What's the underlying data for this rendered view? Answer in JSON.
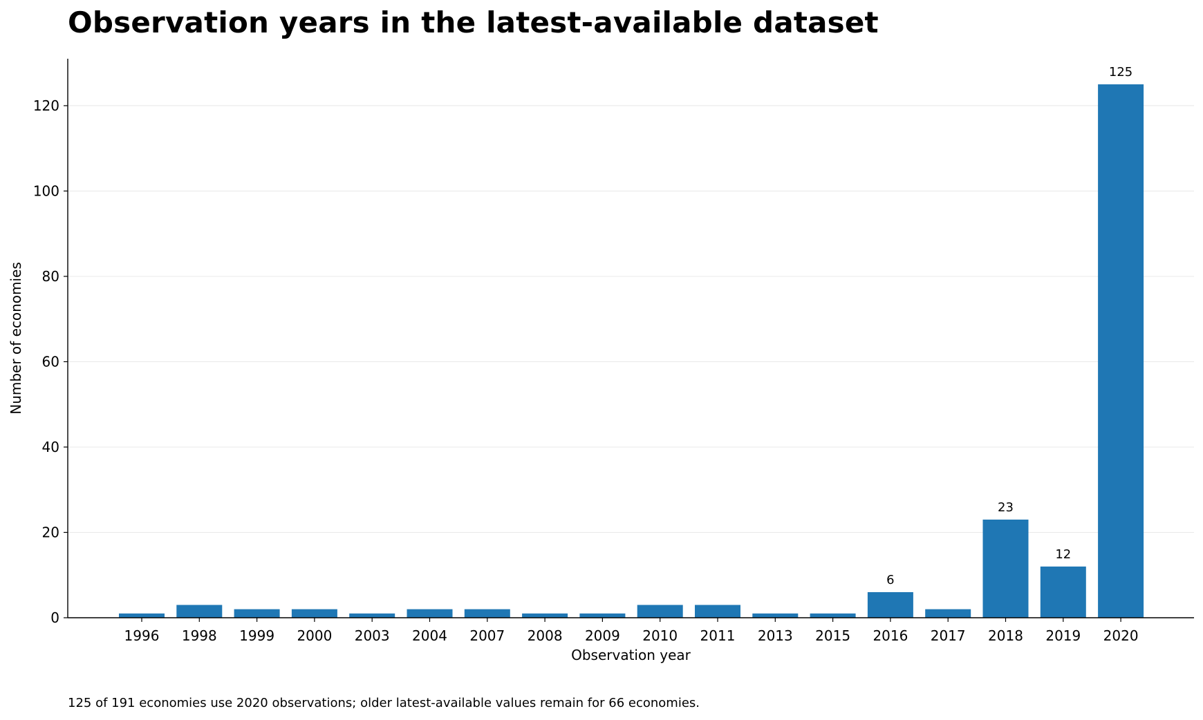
{
  "chart_data": {
    "type": "bar",
    "title": "Observation years in the latest-available dataset",
    "xlabel": "Observation year",
    "ylabel": "Number of economies",
    "categories": [
      "1996",
      "1998",
      "1999",
      "2000",
      "2003",
      "2004",
      "2007",
      "2008",
      "2009",
      "2010",
      "2011",
      "2013",
      "2015",
      "2016",
      "2017",
      "2018",
      "2019",
      "2020"
    ],
    "values": [
      1,
      3,
      2,
      2,
      1,
      2,
      2,
      1,
      1,
      3,
      3,
      1,
      1,
      6,
      2,
      23,
      12,
      125
    ],
    "data_labels": [
      {
        "category": "2016",
        "text": "6"
      },
      {
        "category": "2018",
        "text": "23"
      },
      {
        "category": "2019",
        "text": "12"
      },
      {
        "category": "2020",
        "text": "125"
      }
    ],
    "ylim": [
      0,
      131
    ],
    "yticks": [
      0,
      20,
      40,
      60,
      80,
      100,
      120
    ],
    "grid": "horizontal",
    "legend": "none",
    "bar_color": "#1f77b4",
    "grid_color": "#e8e8e8",
    "note": "125 of 191 economies use 2020 observations; older latest-available values remain for 66 economies."
  }
}
